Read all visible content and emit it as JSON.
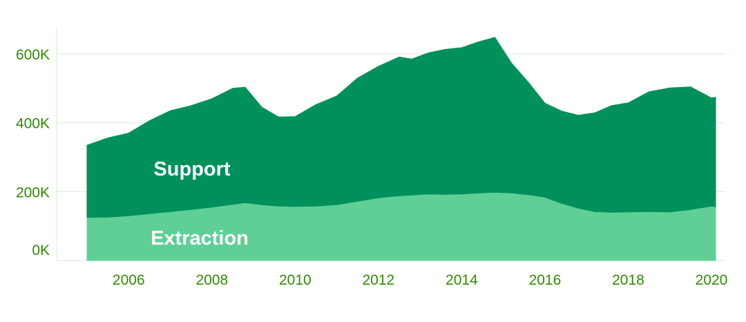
{
  "chart_data": {
    "type": "area",
    "stacked": true,
    "title": "",
    "xlabel": "",
    "ylabel": "",
    "xlim": [
      2004.4,
      2021.0
    ],
    "ylim": [
      0,
      680000
    ],
    "x_ticks": [
      "2006",
      "2008",
      "2010",
      "2012",
      "2014",
      "2016",
      "2018",
      "2020"
    ],
    "y_ticks": [
      {
        "value": 0,
        "label": "0K"
      },
      {
        "value": 200000,
        "label": "200K"
      },
      {
        "value": 400000,
        "label": "400K"
      },
      {
        "value": 600000,
        "label": "600K"
      }
    ],
    "grid": "horizontal",
    "legend": "none",
    "x": [
      2005.0,
      2005.5,
      2006.0,
      2006.5,
      2007.0,
      2007.5,
      2008.0,
      2008.5,
      2008.8,
      2009.2,
      2009.6,
      2010.0,
      2010.5,
      2011.0,
      2011.5,
      2012.0,
      2012.5,
      2012.8,
      2013.2,
      2013.6,
      2014.0,
      2014.4,
      2014.8,
      2015.2,
      2015.6,
      2016.0,
      2016.4,
      2016.8,
      2017.2,
      2017.6,
      2018.0,
      2018.5,
      2019.0,
      2019.5,
      2020.0,
      2020.1
    ],
    "series": [
      {
        "name": "Extraction",
        "color": "#5fcf96",
        "values": [
          125000,
          126000,
          130000,
          136000,
          142000,
          148000,
          155000,
          163000,
          168000,
          162000,
          158000,
          157000,
          158000,
          162000,
          172000,
          182000,
          188000,
          190000,
          193000,
          192000,
          193000,
          196000,
          198000,
          196000,
          191000,
          184000,
          166000,
          152000,
          142000,
          140000,
          141000,
          142000,
          141000,
          148000,
          158000,
          156000
        ]
      },
      {
        "name": "Support",
        "color": "#00905c",
        "values": [
          210000,
          230000,
          240000,
          270000,
          293000,
          302000,
          315000,
          337000,
          335000,
          283000,
          259000,
          261000,
          295000,
          316000,
          358000,
          382000,
          403000,
          395000,
          410000,
          421000,
          425000,
          439000,
          450000,
          377000,
          327000,
          273000,
          268000,
          270000,
          287000,
          310000,
          317000,
          348000,
          360000,
          356000,
          314000,
          318000
        ]
      }
    ],
    "area_labels": [
      "Support",
      "Extraction"
    ]
  }
}
